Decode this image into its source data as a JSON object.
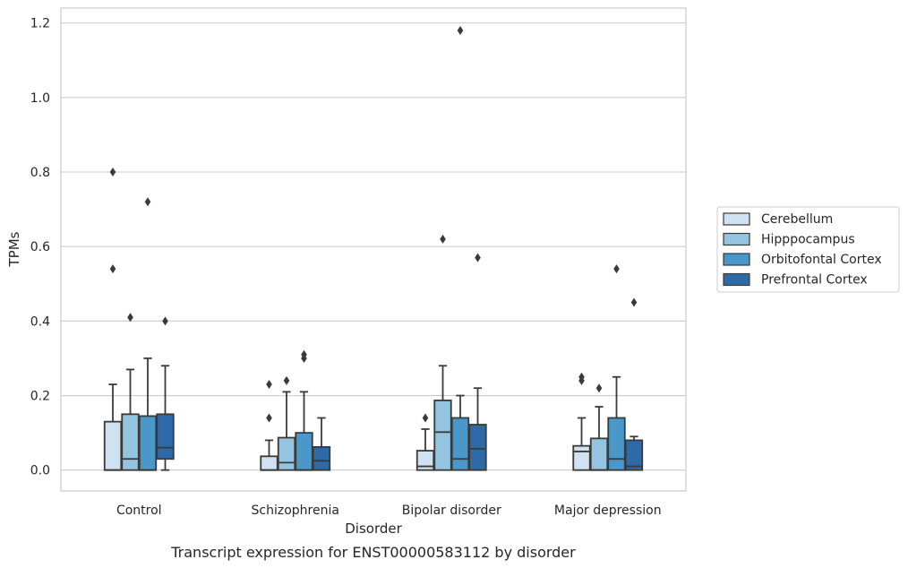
{
  "chart_data": {
    "type": "box",
    "title": "",
    "caption": "Transcript expression for ENST00000583112 by disorder",
    "xlabel": "Disorder",
    "ylabel": "TPMs",
    "ylim": [
      -0.056,
      1.24
    ],
    "yticks": [
      0.0,
      0.2,
      0.4,
      0.6,
      0.8,
      1.0,
      1.2
    ],
    "ytick_labels": [
      "0.0",
      "0.2",
      "0.4",
      "0.6",
      "0.8",
      "1.0",
      "1.2"
    ],
    "grid": "horizontal",
    "legend_position": "right",
    "categories": [
      "Control",
      "Schizophrenia",
      "Bipolar disorder",
      "Major depression"
    ],
    "series": [
      {
        "name": "Cerebellum",
        "color": "#d0e1f2",
        "boxes": [
          {
            "whislo": 0.0,
            "q1": 0.0,
            "med": 0.0,
            "q3": 0.13,
            "whishi": 0.23,
            "fliers": [
              0.54,
              0.8
            ]
          },
          {
            "whislo": 0.0,
            "q1": 0.0,
            "med": 0.0,
            "q3": 0.037,
            "whishi": 0.08,
            "fliers": [
              0.14,
              0.23
            ]
          },
          {
            "whislo": 0.0,
            "q1": 0.0,
            "med": 0.01,
            "q3": 0.052,
            "whishi": 0.11,
            "fliers": [
              0.14
            ]
          },
          {
            "whislo": 0.0,
            "q1": 0.0,
            "med": 0.05,
            "q3": 0.065,
            "whishi": 0.14,
            "fliers": [
              0.24,
              0.25
            ]
          }
        ]
      },
      {
        "name": "Hipppocampus",
        "color": "#94c4df",
        "boxes": [
          {
            "whislo": 0.0,
            "q1": 0.0,
            "med": 0.03,
            "q3": 0.15,
            "whishi": 0.27,
            "fliers": [
              0.41
            ]
          },
          {
            "whislo": 0.0,
            "q1": 0.0,
            "med": 0.02,
            "q3": 0.087,
            "whishi": 0.21,
            "fliers": [
              0.24
            ]
          },
          {
            "whislo": 0.0,
            "q1": 0.0,
            "med": 0.102,
            "q3": 0.187,
            "whishi": 0.28,
            "fliers": [
              0.62
            ]
          },
          {
            "whislo": 0.0,
            "q1": 0.0,
            "med": 0.0,
            "q3": 0.085,
            "whishi": 0.17,
            "fliers": [
              0.22
            ]
          }
        ]
      },
      {
        "name": "Orbitofontal Cortex",
        "color": "#4a98c9",
        "boxes": [
          {
            "whislo": 0.0,
            "q1": 0.0,
            "med": 0.0,
            "q3": 0.145,
            "whishi": 0.3,
            "fliers": [
              0.72
            ]
          },
          {
            "whislo": 0.0,
            "q1": 0.0,
            "med": 0.0,
            "q3": 0.1,
            "whishi": 0.21,
            "fliers": [
              0.3,
              0.31
            ]
          },
          {
            "whislo": 0.0,
            "q1": 0.0,
            "med": 0.03,
            "q3": 0.14,
            "whishi": 0.2,
            "fliers": [
              1.18
            ]
          },
          {
            "whislo": 0.0,
            "q1": 0.0,
            "med": 0.03,
            "q3": 0.14,
            "whishi": 0.25,
            "fliers": [
              0.54
            ]
          }
        ]
      },
      {
        "name": "Prefrontal Cortex",
        "color": "#2e6aa8",
        "boxes": [
          {
            "whislo": 0.0,
            "q1": 0.03,
            "med": 0.06,
            "q3": 0.15,
            "whishi": 0.28,
            "fliers": [
              0.4
            ]
          },
          {
            "whislo": 0.0,
            "q1": 0.0,
            "med": 0.025,
            "q3": 0.062,
            "whishi": 0.14,
            "fliers": []
          },
          {
            "whislo": 0.0,
            "q1": 0.0,
            "med": 0.057,
            "q3": 0.122,
            "whishi": 0.22,
            "fliers": [
              0.57
            ]
          },
          {
            "whislo": 0.0,
            "q1": 0.0,
            "med": 0.01,
            "q3": 0.08,
            "whishi": 0.09,
            "fliers": [
              0.45
            ]
          }
        ]
      }
    ]
  }
}
